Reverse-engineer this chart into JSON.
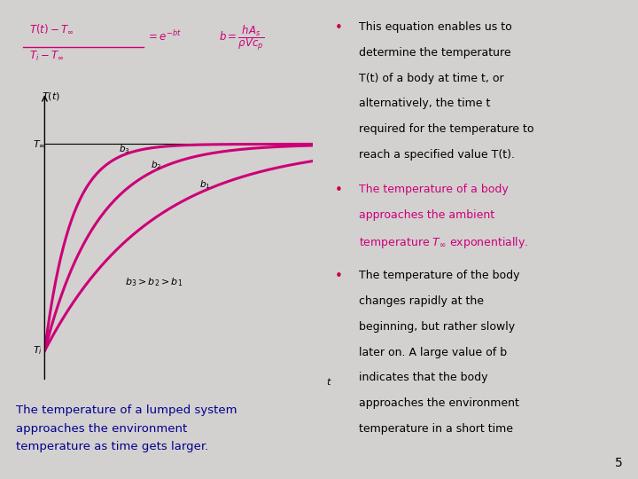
{
  "bg_color": "#d3d0d0",
  "white_box_color": "#ffffff",
  "magenta": "#cc0077",
  "blue_text": "#00008b",
  "black": "#000000",
  "bullet_color": "#cc0044",
  "red_bullet": "#cc0033",
  "b_values": [
    0.5,
    1.0,
    2.0
  ],
  "T_inf": 1.0,
  "T_i": 0.0,
  "t_max": 5.0,
  "curve_color": "#cc0077",
  "curve_linewidth": 2.2,
  "page_num": "5",
  "caption_line1": "The temperature of a lumped system",
  "caption_line2": "approaches the environment",
  "caption_line3": "temperature as time gets larger.",
  "bullet1_text": "This equation enables us to\ndetermine the temperature\nT(t) of a body at time t, or\nalternatively, the time t\nrequired for the temperature to\nreach a specified value T(t).",
  "bullet2_text": "The temperature of a body\napproaches the ambient\ntemperature T∞ exponentially.",
  "bullet3_text": "The temperature of the body\nchanges rapidly at the\nbeginning, but rather slowly\nlater on. A large value of b\nindicates that the body\napproaches the environment\ntemperature in a short time"
}
